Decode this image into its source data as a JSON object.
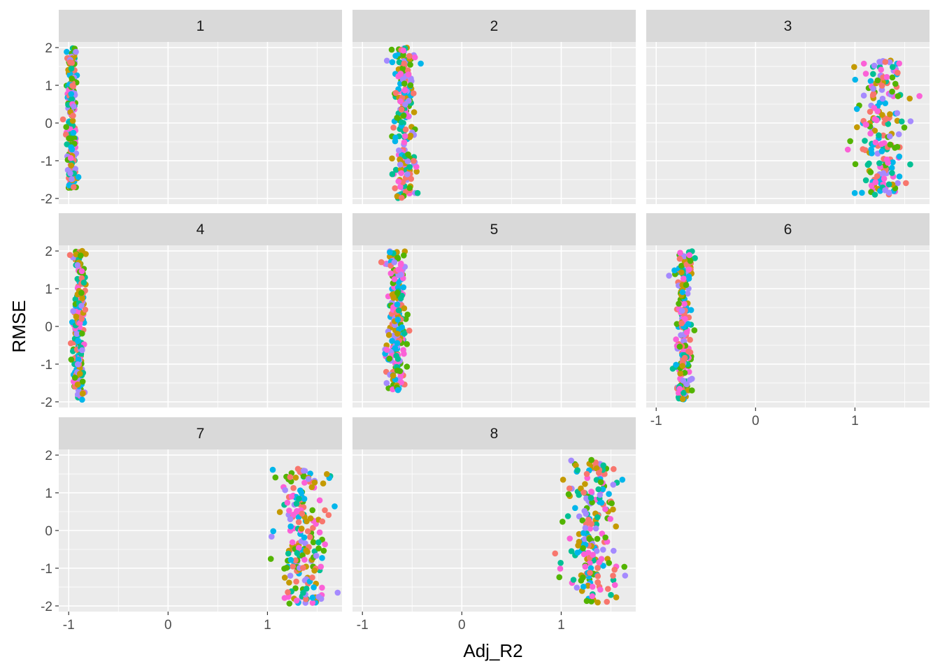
{
  "chart_data": {
    "type": "scatter",
    "facet_by": "panel",
    "facet_layout": {
      "ncol": 3,
      "nrow": 3
    },
    "xlabel": "Adj_R2",
    "ylabel": "RMSE",
    "xlim": [
      -1.1,
      1.75
    ],
    "ylim": [
      -2.15,
      2.15
    ],
    "x_ticks": [
      -1,
      0,
      1
    ],
    "x_tick_labels": [
      "-1",
      "0",
      "1"
    ],
    "y_ticks": [
      -2,
      -1,
      0,
      1,
      2
    ],
    "y_tick_labels": [
      "-2",
      "-1",
      "0",
      "1",
      "2"
    ],
    "grid": true,
    "legend": "none",
    "colors": {
      "panel_background": "#EBEBEB",
      "grid_major": "#FFFFFF",
      "strip_background": "#D9D9D9",
      "tick_text": "#4D4D4D",
      "tick_mark": "#333333"
    },
    "series_colors": [
      "#F8766D",
      "#C49A00",
      "#53B400",
      "#00C094",
      "#00B6EB",
      "#A58AFF",
      "#FB61D7"
    ],
    "points_per_panel": 200,
    "panels": [
      {
        "label": "1",
        "x_center": -0.97,
        "x_spread": 0.025,
        "y_range": [
          -1.75,
          2.0
        ]
      },
      {
        "label": "2",
        "x_center": -0.58,
        "x_spread": 0.06,
        "y_range": [
          -2.0,
          2.0
        ]
      },
      {
        "label": "3",
        "x_center": 1.27,
        "x_spread": 0.12,
        "y_range": [
          -1.9,
          1.7
        ]
      },
      {
        "label": "4",
        "x_center": -0.9,
        "x_spread": 0.03,
        "y_range": [
          -1.95,
          2.0
        ]
      },
      {
        "label": "5",
        "x_center": -0.66,
        "x_spread": 0.05,
        "y_range": [
          -1.7,
          2.0
        ]
      },
      {
        "label": "6",
        "x_center": -0.72,
        "x_spread": 0.04,
        "y_range": [
          -1.95,
          2.0
        ]
      },
      {
        "label": "7",
        "x_center": 1.35,
        "x_spread": 0.12,
        "y_range": [
          -1.95,
          1.65
        ]
      },
      {
        "label": "8",
        "x_center": 1.3,
        "x_spread": 0.12,
        "y_range": [
          -1.95,
          1.95
        ]
      }
    ]
  }
}
